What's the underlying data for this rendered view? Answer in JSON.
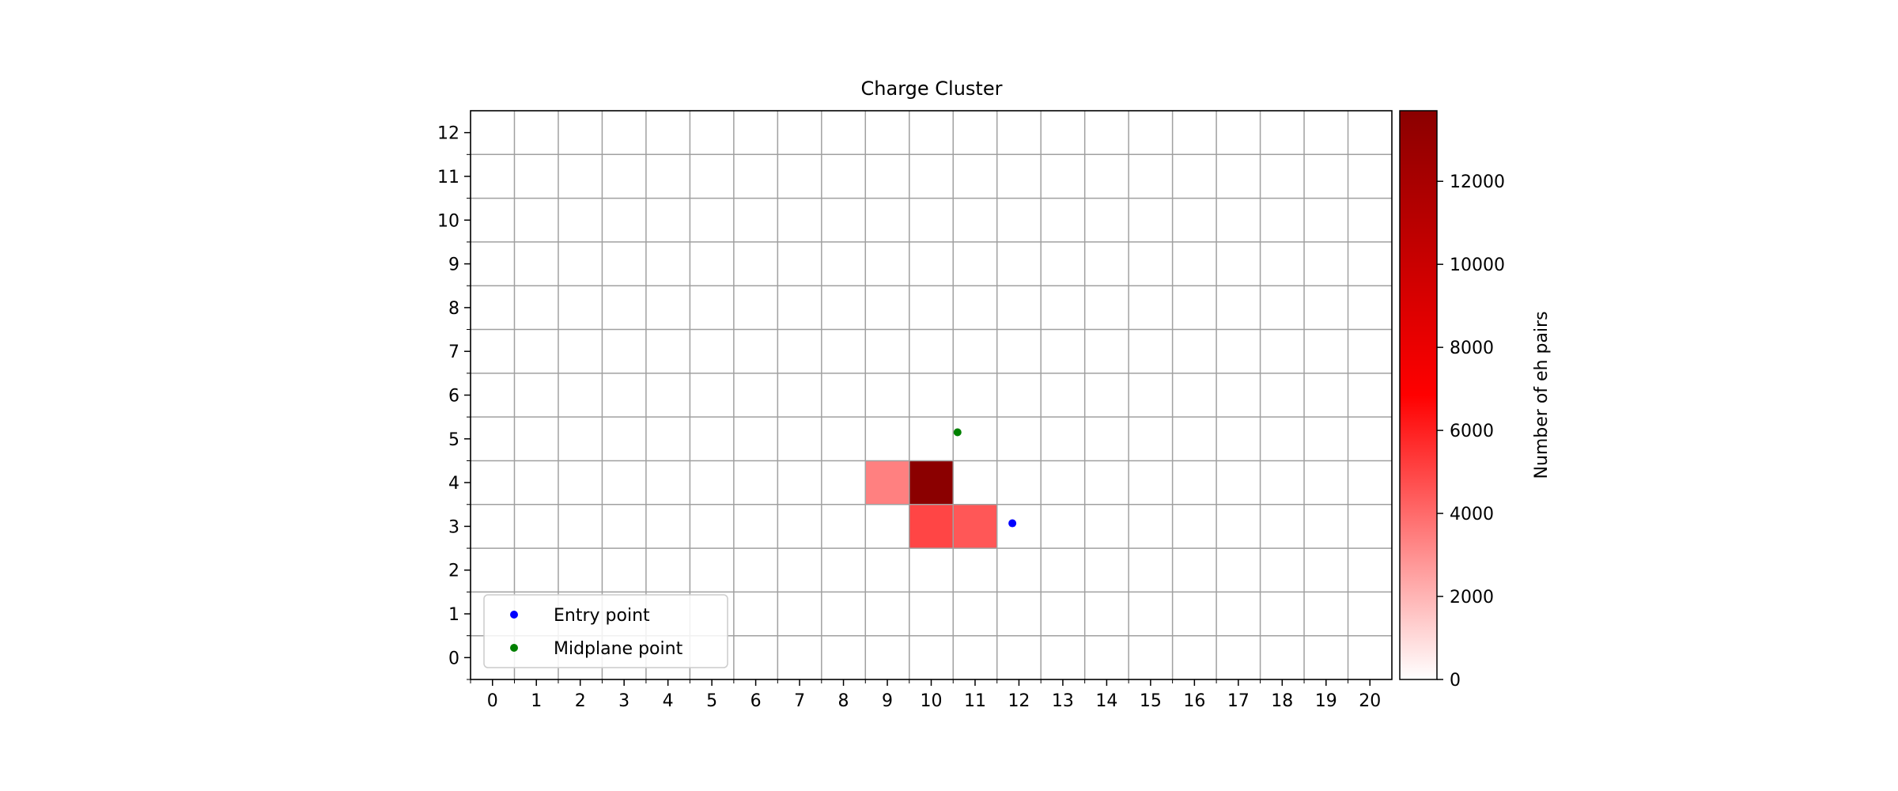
{
  "chart_data": {
    "type": "heatmap",
    "title": "Charge Cluster",
    "xlabel": "",
    "ylabel": "",
    "x_ticks": [
      0,
      1,
      2,
      3,
      4,
      5,
      6,
      7,
      8,
      9,
      10,
      11,
      12,
      13,
      14,
      15,
      16,
      17,
      18,
      19,
      20
    ],
    "y_ticks": [
      0,
      1,
      2,
      3,
      4,
      5,
      6,
      7,
      8,
      9,
      10,
      11,
      12
    ],
    "xlim": [
      -0.5,
      20.5
    ],
    "ylim": [
      -0.5,
      12.5
    ],
    "grid": true,
    "cells": [
      {
        "x": 9,
        "y": 4,
        "value": 3400
      },
      {
        "x": 10,
        "y": 4,
        "value": 13700
      },
      {
        "x": 10,
        "y": 3,
        "value": 5000
      },
      {
        "x": 11,
        "y": 3,
        "value": 4500
      }
    ],
    "points": [
      {
        "name": "Entry point",
        "x": 11.85,
        "y": 3.07,
        "color": "#0000ff"
      },
      {
        "name": "Midplane point",
        "x": 10.6,
        "y": 5.15,
        "color": "#008000"
      }
    ],
    "legend": {
      "location": "lower-left",
      "entries": [
        "Entry point",
        "Midplane point"
      ]
    },
    "colorbar": {
      "label": "Number of eh pairs",
      "min": 0,
      "max": 13700,
      "ticks": [
        0,
        2000,
        4000,
        6000,
        8000,
        10000,
        12000
      ],
      "colormap": [
        "#ffffff",
        "#ff0000",
        "#8b0000"
      ]
    }
  }
}
